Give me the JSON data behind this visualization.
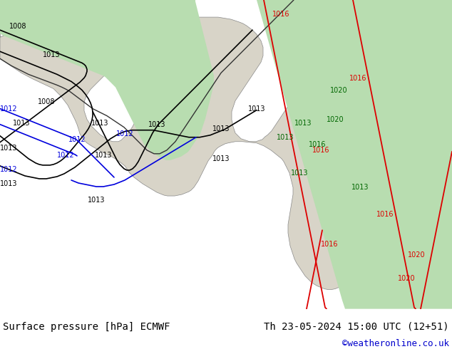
{
  "title_left": "Surface pressure [hPa] ECMWF",
  "title_right": "Th 23-05-2024 15:00 UTC (12+51)",
  "copyright": "©weatheronline.co.uk",
  "sea_color": "#c8d8e8",
  "land_color": "#e8e4d8",
  "green_fill": "#b8ddb0",
  "figsize": [
    6.34,
    4.9
  ],
  "dpi": 100,
  "font_size_title": 10,
  "font_size_copyright": 9,
  "map_bg": "#d0d8e0",
  "footer_bg": "#ffffff",
  "contour_black": "#000000",
  "contour_blue": "#0000dd",
  "contour_red": "#dd0000",
  "contour_green": "#007700",
  "label_fontsize": 7
}
